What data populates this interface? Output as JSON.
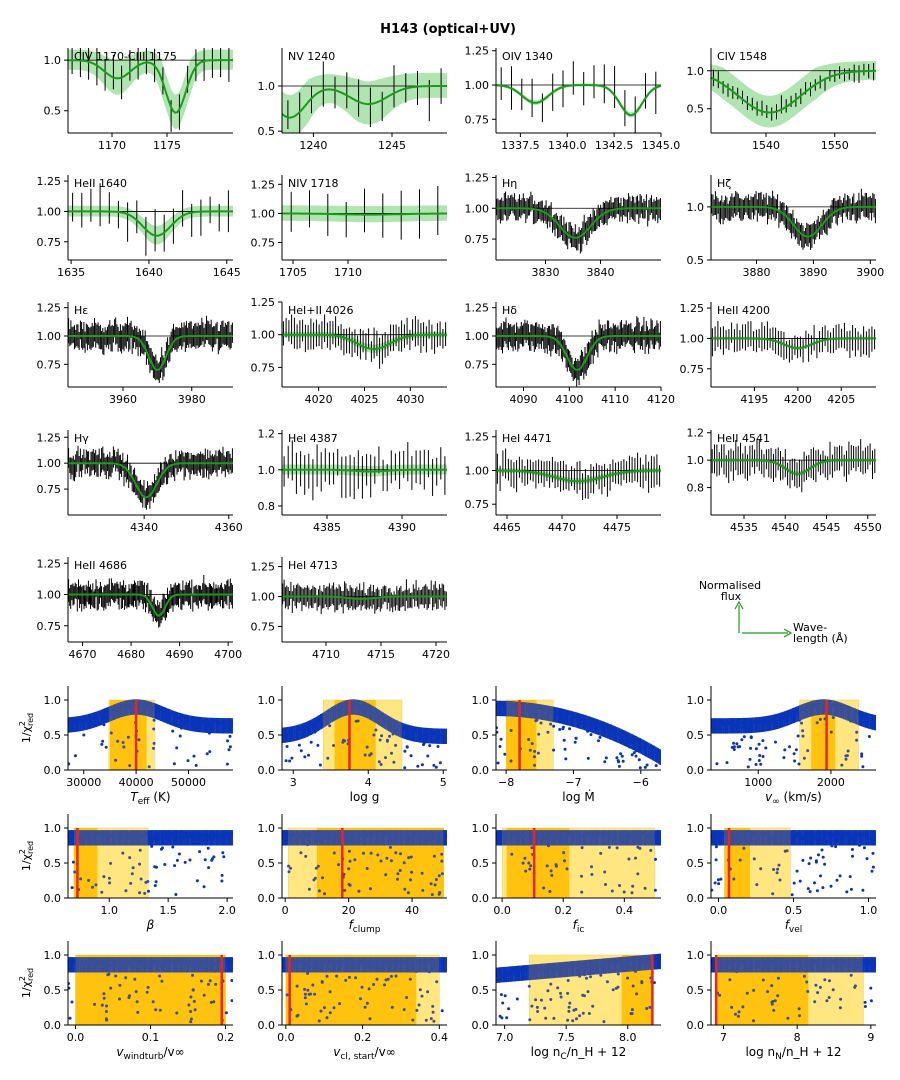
{
  "title": "H143 (optical+UV)",
  "colors": {
    "obs": "#000000",
    "model": "#1a9c1a",
    "band": "#8fd98f",
    "scatter": "#0a35b8",
    "best": "#e8261c",
    "band1": "#ffc20e",
    "band2": "#ffe680",
    "overlap": "#3b4f97"
  },
  "legend": {
    "flux_label_1": "Normalised",
    "flux_label_2": "flux",
    "wave_label_1": "Wave-",
    "wave_label_2": "length (Å)"
  },
  "chart_data": {
    "spectra": [
      {
        "label": "CIV 1170-CIII 1175",
        "xlim": [
          1166,
          1181
        ],
        "ylim": [
          0.28,
          1.12
        ],
        "xticks": [
          1170,
          1175
        ],
        "xticklabels": [
          "1170",
          "1175"
        ],
        "yticks": [
          0.5,
          1.0
        ],
        "yticklabels": [
          "0.5",
          "1.0"
        ],
        "lines": [
          {
            "c": 1170.5,
            "d": 0.18,
            "w": 1.2
          },
          {
            "c": 1175.8,
            "d": 0.52,
            "w": 0.9
          }
        ],
        "band": 0.18,
        "noise": 0.22,
        "n": 20
      },
      {
        "label": "NV 1240",
        "xlim": [
          1238,
          1248.5
        ],
        "ylim": [
          0.48,
          1.42
        ],
        "xticks": [
          1240,
          1245
        ],
        "xticklabels": [
          "1240",
          "1245"
        ],
        "yticks": [
          0.5,
          1.0
        ],
        "yticklabels": [
          "0.5",
          "1.0"
        ],
        "lines": [
          {
            "c": 1238.5,
            "d": 0.35,
            "w": 1.0
          },
          {
            "c": 1243.5,
            "d": 0.2,
            "w": 1.2
          }
        ],
        "band": 0.25,
        "noise": 0.25,
        "n": 14
      },
      {
        "label": "OIV 1340",
        "xlim": [
          1336.2,
          1345
        ],
        "ylim": [
          0.65,
          1.27
        ],
        "xticks": [
          1337.5,
          1340.0,
          1342.5,
          1345.0
        ],
        "xticklabels": [
          "1337.5",
          "1340.0",
          "1342.5",
          "1345.0"
        ],
        "yticks": [
          0.75,
          1.0,
          1.25
        ],
        "yticklabels": [
          "0.75",
          "1.00",
          "1.25"
        ],
        "lines": [
          {
            "c": 1338.3,
            "d": 0.13,
            "w": 0.7
          },
          {
            "c": 1343.4,
            "d": 0.22,
            "w": 0.6
          }
        ],
        "band": 0.02,
        "noise": 0.16,
        "n": 16
      },
      {
        "label": "CIV 1548",
        "xlim": [
          1532,
          1556
        ],
        "ylim": [
          0.18,
          1.3
        ],
        "xticks": [
          1540,
          1550
        ],
        "xticklabels": [
          "1540",
          "1550"
        ],
        "yticks": [
          0.5,
          1.0
        ],
        "yticklabels": [
          "0.5",
          "1.0"
        ],
        "lines": [
          {
            "c": 1540.5,
            "d": 0.55,
            "w": 4.5
          }
        ],
        "band": 0.22,
        "noise": 0.12,
        "n": 34
      },
      {
        "label": "HeII 1640",
        "xlim": [
          1634.8,
          1645.4
        ],
        "ylim": [
          0.6,
          1.3
        ],
        "xticks": [
          1635,
          1640,
          1645
        ],
        "xticklabels": [
          "1635",
          "1640",
          "1645"
        ],
        "yticks": [
          0.75,
          1.0,
          1.25
        ],
        "yticklabels": [
          "0.75",
          "1.00",
          "1.25"
        ],
        "lines": [
          {
            "c": 1640.5,
            "d": 0.2,
            "w": 0.9
          }
        ],
        "band": 0.08,
        "noise": 0.18,
        "n": 18
      },
      {
        "label": "NIV 1718",
        "xlim": [
          1704,
          1719
        ],
        "ylim": [
          0.6,
          1.33
        ],
        "xticks": [
          1705,
          1710
        ],
        "xticklabels": [
          "1705",
          "1710"
        ],
        "yticks": [
          0.75,
          1.0,
          1.25
        ],
        "yticklabels": [
          "0.75",
          "1.00",
          "1.25"
        ],
        "lines": [
          {
            "c": 1712,
            "d": 0.01,
            "w": 3
          }
        ],
        "band": 0.12,
        "noise": 0.22,
        "n": 9
      },
      {
        "label": "Hη",
        "xlim": [
          3821,
          3851
        ],
        "ylim": [
          0.58,
          1.27
        ],
        "xticks": [
          3830,
          3840
        ],
        "xticklabels": [
          "3830",
          "3840"
        ],
        "yticks": [
          0.75,
          1.0,
          1.25
        ],
        "yticklabels": [
          "0.75",
          "1.00",
          "1.25"
        ],
        "lines": [
          {
            "c": 3835.4,
            "d": 0.24,
            "w": 2.8
          }
        ],
        "band": 0.02,
        "noise": 0.1,
        "n": 130
      },
      {
        "label": "Hζ",
        "xlim": [
          3872,
          3901
        ],
        "ylim": [
          0.5,
          1.3
        ],
        "xticks": [
          3880,
          3890,
          3900
        ],
        "xticklabels": [
          "3880",
          "3890",
          "3900"
        ],
        "yticks": [
          0.5,
          1.0
        ],
        "yticklabels": [
          "0.5",
          "1.0"
        ],
        "lines": [
          {
            "c": 3889,
            "d": 0.28,
            "w": 2.5
          }
        ],
        "band": 0.02,
        "noise": 0.12,
        "n": 130
      },
      {
        "label": "Hε",
        "xlim": [
          3944,
          3992
        ],
        "ylim": [
          0.55,
          1.3
        ],
        "xticks": [
          3960,
          3980
        ],
        "xticklabels": [
          "3960",
          "3980"
        ],
        "yticks": [
          0.75,
          1.0,
          1.25
        ],
        "yticklabels": [
          "0.75",
          "1.00",
          "1.25"
        ],
        "lines": [
          {
            "c": 3970,
            "d": 0.3,
            "w": 2.5
          }
        ],
        "band": 0.02,
        "noise": 0.12,
        "n": 140
      },
      {
        "label": "HeI+II 4026",
        "xlim": [
          4016,
          4034
        ],
        "ylim": [
          0.6,
          1.25
        ],
        "xticks": [
          4020,
          4025,
          4030
        ],
        "xticklabels": [
          "4020",
          "4025",
          "4030"
        ],
        "yticks": [
          0.75,
          1.0,
          1.25
        ],
        "yticklabels": [
          "0.75",
          "1.00",
          "1.25"
        ],
        "lines": [
          {
            "c": 4026,
            "d": 0.11,
            "w": 1.8
          }
        ],
        "band": 0.04,
        "noise": 0.12,
        "n": 60
      },
      {
        "label": "Hδ",
        "xlim": [
          4084,
          4120
        ],
        "ylim": [
          0.55,
          1.3
        ],
        "xticks": [
          4090,
          4100,
          4110,
          4120
        ],
        "xticklabels": [
          "4090",
          "4100",
          "4110",
          "4120"
        ],
        "yticks": [
          0.75,
          1.0,
          1.25
        ],
        "yticklabels": [
          "0.75",
          "1.00",
          "1.25"
        ],
        "lines": [
          {
            "c": 4101.7,
            "d": 0.3,
            "w": 2.2
          }
        ],
        "band": 0.02,
        "noise": 0.12,
        "n": 140
      },
      {
        "label": "HeII 4200",
        "xlim": [
          4190,
          4209
        ],
        "ylim": [
          0.6,
          1.3
        ],
        "xticks": [
          4195,
          4200,
          4205
        ],
        "xticklabels": [
          "4195",
          "4200",
          "4205"
        ],
        "yticks": [
          0.75,
          1.0,
          1.25
        ],
        "yticklabels": [
          "0.75",
          "1.00",
          "1.25"
        ],
        "lines": [
          {
            "c": 4200,
            "d": 0.08,
            "w": 1.6
          }
        ],
        "band": 0.02,
        "noise": 0.12,
        "n": 60
      },
      {
        "label": "Hγ",
        "xlim": [
          4322,
          4361
        ],
        "ylim": [
          0.5,
          1.32
        ],
        "xticks": [
          4340,
          4360
        ],
        "xticklabels": [
          "4340",
          "4360"
        ],
        "yticks": [
          0.75,
          1.0,
          1.25
        ],
        "yticklabels": [
          "0.75",
          "1.00",
          "1.25"
        ],
        "lines": [
          {
            "c": 4340.5,
            "d": 0.33,
            "w": 2.5
          }
        ],
        "band": 0.02,
        "noise": 0.12,
        "n": 140
      },
      {
        "label": "HeI 4387",
        "xlim": [
          4382,
          4393
        ],
        "ylim": [
          0.75,
          1.22
        ],
        "xticks": [
          4385,
          4390
        ],
        "xticklabels": [
          "4385",
          "4390"
        ],
        "yticks": [
          0.8,
          1.0,
          1.2
        ],
        "yticklabels": [
          "0.8",
          "1.0",
          "1.2"
        ],
        "lines": [
          {
            "c": 4387.9,
            "d": 0.01,
            "w": 1
          }
        ],
        "band": 0.05,
        "noise": 0.12,
        "n": 40
      },
      {
        "label": "HeI 4471",
        "xlim": [
          4464,
          4479
        ],
        "ylim": [
          0.67,
          1.3
        ],
        "xticks": [
          4465,
          4470,
          4475
        ],
        "xticklabels": [
          "4465",
          "4470",
          "4475"
        ],
        "yticks": [
          0.75,
          1.0,
          1.25
        ],
        "yticklabels": [
          "0.75",
          "1.00",
          "1.25"
        ],
        "lines": [
          {
            "c": 4471.5,
            "d": 0.08,
            "w": 2.2
          }
        ],
        "band": 0.03,
        "noise": 0.12,
        "n": 60
      },
      {
        "label": "HeII 4541",
        "xlim": [
          4531,
          4551
        ],
        "ylim": [
          0.6,
          1.22
        ],
        "xticks": [
          4535,
          4540,
          4545,
          4550
        ],
        "xticklabels": [
          "4535",
          "4540",
          "4545",
          "4550"
        ],
        "yticks": [
          0.8,
          1.0,
          1.2
        ],
        "yticklabels": [
          "0.8",
          "1.0",
          "1.2"
        ],
        "lines": [
          {
            "c": 4541.5,
            "d": 0.1,
            "w": 1.5
          }
        ],
        "band": 0.02,
        "noise": 0.12,
        "n": 70
      },
      {
        "label": "HeII 4686",
        "xlim": [
          4667,
          4701
        ],
        "ylim": [
          0.62,
          1.3
        ],
        "xticks": [
          4670,
          4680,
          4690,
          4700
        ],
        "xticklabels": [
          "4670",
          "4680",
          "4690",
          "4700"
        ],
        "yticks": [
          0.75,
          1.0,
          1.25
        ],
        "yticklabels": [
          "0.75",
          "1.00",
          "1.25"
        ],
        "lines": [
          {
            "c": 4685.7,
            "d": 0.17,
            "w": 1.3
          }
        ],
        "band": 0.02,
        "noise": 0.1,
        "n": 150
      },
      {
        "label": "HeI 4713",
        "xlim": [
          4706,
          4721
        ],
        "ylim": [
          0.62,
          1.33
        ],
        "xticks": [
          4710,
          4715,
          4720
        ],
        "xticklabels": [
          "4710",
          "4715",
          "4720"
        ],
        "yticks": [
          0.75,
          1.0,
          1.25
        ],
        "yticklabels": [
          "0.75",
          "1.00",
          "1.25"
        ],
        "lines": [
          {
            "c": 4713.2,
            "d": 0.02,
            "w": 1.2
          }
        ],
        "band": 0.02,
        "noise": 0.1,
        "n": 120
      }
    ],
    "params": [
      {
        "xlabel_main": "T",
        "xlabel_sub": "eff",
        "xlabel_rest": " (K)",
        "xlim": [
          27000,
          58500
        ],
        "xticks": [
          30000,
          40000,
          50000
        ],
        "xticklabels": [
          "30000",
          "40000",
          "50000"
        ],
        "best": 40000,
        "band1": [
          35000,
          42000
        ],
        "band2": [
          34800,
          43600
        ],
        "shape": "peak",
        "peak": 40000,
        "spread": 0.45,
        "base": 0.7
      },
      {
        "xlabel_main": "log g",
        "xlabel_sub": "",
        "xlabel_rest": "",
        "xlim": [
          2.85,
          5.05
        ],
        "xticks": [
          3,
          4,
          5
        ],
        "xticklabels": [
          "3",
          "4",
          "5"
        ],
        "best": 3.75,
        "band1": [
          3.55,
          4.1
        ],
        "band2": [
          3.4,
          4.45
        ],
        "shape": "peak",
        "peak": 3.8,
        "spread": 0.9,
        "base": 0.55
      },
      {
        "xlabel_main": "log Ṁ",
        "xlabel_sub": "",
        "xlabel_rest": "",
        "xlim": [
          -8.15,
          -5.7
        ],
        "xticks": [
          -8,
          -7,
          -6
        ],
        "xticklabels": [
          "−8",
          "−7",
          "−6"
        ],
        "best": -7.8,
        "band1": [
          -8.0,
          -7.55
        ],
        "band2": [
          -8.0,
          -7.3
        ],
        "shape": "decline",
        "peak": -7.9,
        "spread": 0.9,
        "base": 0.2
      },
      {
        "xlabel_main": "v",
        "xlabel_sub": "∞",
        "xlabel_rest": " (km/s)",
        "xlim": [
          350,
          2620
        ],
        "xticks": [
          1000,
          2000
        ],
        "xticklabels": [
          "1000",
          "2000"
        ],
        "best": 1940,
        "band1": [
          1730,
          2060
        ],
        "band2": [
          1570,
          2380
        ],
        "shape": "peak",
        "peak": 1900,
        "spread": 0.9,
        "base": 0.7
      },
      {
        "xlabel_main": "β",
        "xlabel_sub": "",
        "xlabel_rest": "",
        "xlim": [
          0.65,
          2.05
        ],
        "xticks": [
          1.0,
          1.5,
          2.0
        ],
        "xticklabels": [
          "1.0",
          "1.5",
          "2.0"
        ],
        "best": 0.73,
        "band1": [
          0.7,
          0.9
        ],
        "band2": [
          0.7,
          1.33
        ],
        "shape": "flat",
        "peak": 0.8,
        "spread": 1,
        "base": 0.8
      },
      {
        "xlabel_main": "f",
        "xlabel_sub": "clump",
        "xlabel_rest": "",
        "xlim": [
          -1,
          51
        ],
        "xticks": [
          0,
          20,
          40
        ],
        "xticklabels": [
          "0",
          "20",
          "40"
        ],
        "best": 18,
        "band1": [
          10,
          50
        ],
        "band2": [
          1,
          50
        ],
        "shape": "flat",
        "peak": 18,
        "spread": 1,
        "base": 0.85
      },
      {
        "xlabel_main": "f",
        "xlabel_sub": "ic",
        "xlabel_rest": "",
        "xlim": [
          -0.02,
          0.52
        ],
        "xticks": [
          0.0,
          0.2,
          0.4
        ],
        "xticklabels": [
          "0.0",
          "0.2",
          "0.4"
        ],
        "best": 0.105,
        "band1": [
          0.015,
          0.22
        ],
        "band2": [
          0.0,
          0.5
        ],
        "shape": "flat",
        "peak": 0.1,
        "spread": 1,
        "base": 0.8
      },
      {
        "xlabel_main": "f",
        "xlabel_sub": "vel",
        "xlabel_rest": "",
        "xlim": [
          -0.05,
          1.05
        ],
        "xticks": [
          0.0,
          0.5,
          1.0
        ],
        "xticklabels": [
          "0.0",
          "0.5",
          "1.0"
        ],
        "best": 0.07,
        "band1": [
          0.04,
          0.21
        ],
        "band2": [
          0.04,
          0.48
        ],
        "shape": "flat",
        "peak": 0.1,
        "spread": 1,
        "base": 0.8
      },
      {
        "xlabel_main": "v",
        "xlabel_sub": "windturb",
        "xlabel_rest": "/v∞",
        "xlim": [
          -0.01,
          0.21
        ],
        "xticks": [
          0.0,
          0.1,
          0.2
        ],
        "xticklabels": [
          "0.0",
          "0.1",
          "0.2"
        ],
        "best": 0.195,
        "band1": [
          0.0,
          0.2
        ],
        "band2": [
          0.0,
          0.2
        ],
        "shape": "flat",
        "peak": 0.1,
        "spread": 1,
        "base": 0.85
      },
      {
        "xlabel_main": "v",
        "xlabel_sub": "cl, start",
        "xlabel_rest": "/v∞",
        "xlim": [
          -0.01,
          0.42
        ],
        "xticks": [
          0.0,
          0.2,
          0.4
        ],
        "xticklabels": [
          "0.0",
          "0.2",
          "0.4"
        ],
        "best": 0.01,
        "band1": [
          0.0,
          0.34
        ],
        "band2": [
          0.0,
          0.4
        ],
        "shape": "flat",
        "peak": 0.2,
        "spread": 1,
        "base": 0.85
      },
      {
        "xlabel_main": "log n",
        "xlabel_sub": "C",
        "xlabel_rest": "/n_H + 12",
        "xlim": [
          6.93,
          8.27
        ],
        "xticks": [
          7.0,
          7.5,
          8.0
        ],
        "xticklabels": [
          "7.0",
          "7.5",
          "8.0"
        ],
        "best": 8.2,
        "band1": [
          7.95,
          8.2
        ],
        "band2": [
          7.2,
          8.2
        ],
        "shape": "rise",
        "peak": 8.1,
        "spread": 1,
        "base": 0.8
      },
      {
        "xlabel_main": "log n",
        "xlabel_sub": "N",
        "xlabel_rest": "/n_H + 12",
        "xlim": [
          6.83,
          9.07
        ],
        "xticks": [
          7,
          8,
          9
        ],
        "xticklabels": [
          "7",
          "8",
          "9"
        ],
        "best": 6.9,
        "band1": [
          6.9,
          8.15
        ],
        "band2": [
          6.9,
          8.9
        ],
        "shape": "flat",
        "peak": 7.5,
        "spread": 1,
        "base": 0.85
      }
    ],
    "param_yticks": [
      0.0,
      0.5,
      1.0
    ],
    "param_yticklabels": [
      "0.0",
      "0.5",
      "1.0"
    ],
    "param_ylim": [
      0,
      1.2
    ]
  }
}
